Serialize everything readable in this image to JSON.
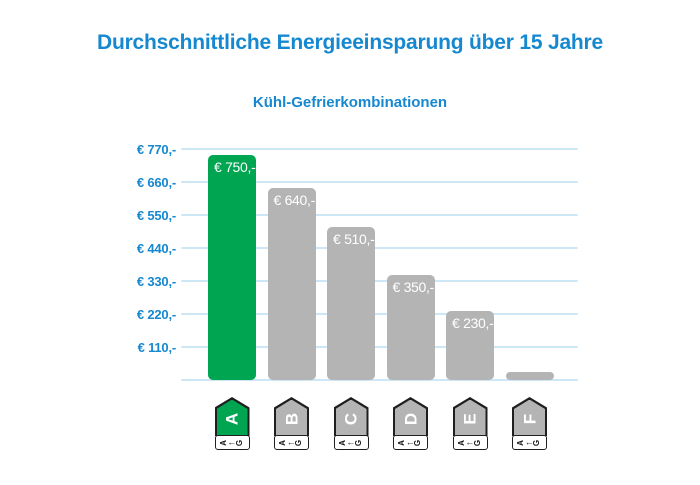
{
  "title": "Durchschnittliche Energieeinsparung über 15 Jahre",
  "colors": {
    "accent_blue": "#1588d0",
    "bar_green": "#00a551",
    "bar_gray": "#b4b4b4",
    "gridline": "#cde7f7",
    "tag_border": "#1f1f1f",
    "bar_label_text": "#ffffff"
  },
  "chart_data": {
    "type": "bar",
    "title": "Kühl-Gefrierkombinationen",
    "categories": [
      "A",
      "B",
      "C",
      "D",
      "E",
      "F"
    ],
    "values": [
      750,
      640,
      510,
      350,
      230,
      25
    ],
    "bar_labels": [
      "€ 750,-",
      "€ 640,-",
      "€ 510,-",
      "€ 350,-",
      "€ 230,-",
      ""
    ],
    "bar_colors": [
      "#00a551",
      "#b4b4b4",
      "#b4b4b4",
      "#b4b4b4",
      "#b4b4b4",
      "#b4b4b4"
    ],
    "tag_scale_text": "A←G",
    "y_ticks": [
      {
        "label": "€ 770,-",
        "value": 770
      },
      {
        "label": "€ 660,-",
        "value": 660
      },
      {
        "label": "€ 550,-",
        "value": 550
      },
      {
        "label": "€ 440,-",
        "value": 440
      },
      {
        "label": "€ 330,-",
        "value": 330
      },
      {
        "label": "€ 220,-",
        "value": 220
      },
      {
        "label": "€ 110,-",
        "value": 110
      }
    ],
    "ylim": [
      0,
      770
    ],
    "grid": true,
    "legend": false,
    "xlabel": "",
    "ylabel": ""
  }
}
